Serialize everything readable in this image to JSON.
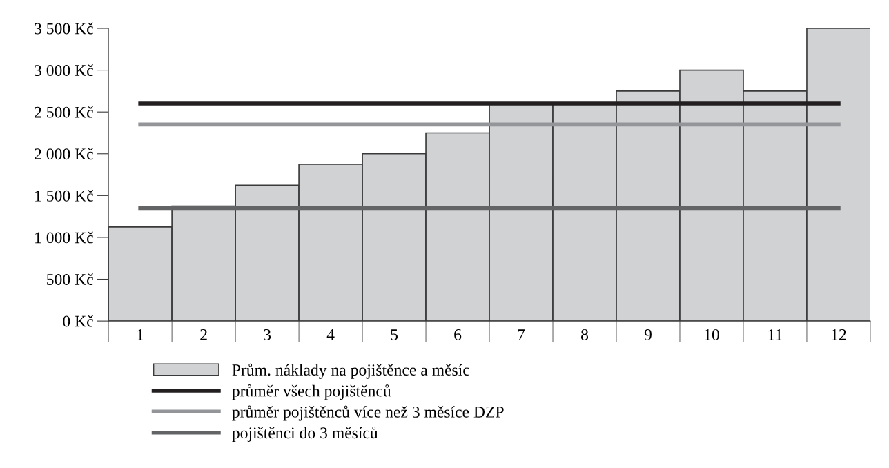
{
  "chart_data": {
    "type": "bar",
    "categories": [
      "1",
      "2",
      "3",
      "4",
      "5",
      "6",
      "7",
      "8",
      "9",
      "10",
      "11",
      "12"
    ],
    "series": [
      {
        "name": "Prům. náklady na pojištěnce a měsíc",
        "color": "#d1d2d4",
        "values": [
          1125,
          1375,
          1625,
          1875,
          2000,
          2250,
          2600,
          2600,
          2750,
          3000,
          2750,
          3500
        ]
      },
      {
        "name": "průměr všech pojištěnců",
        "type": "line",
        "color": "#231f20",
        "values": [
          2600,
          2600,
          2600,
          2600,
          2600,
          2600,
          2600,
          2600,
          2600,
          2600,
          2600,
          2600
        ]
      },
      {
        "name": "průměr pojištěnců více než 3 měsíce DZP",
        "type": "line",
        "color": "#939598",
        "values": [
          2350,
          2350,
          2350,
          2350,
          2350,
          2350,
          2350,
          2350,
          2350,
          2350,
          2350,
          2350
        ]
      },
      {
        "name": "pojištěnci do 3 měsíců",
        "type": "line",
        "color": "#636466",
        "values": [
          1350,
          1350,
          1350,
          1350,
          1350,
          1350,
          1350,
          1350,
          1350,
          1350,
          1350,
          1350
        ]
      }
    ],
    "ylim": [
      0,
      3500
    ],
    "yticks": [
      {
        "value": 0,
        "label": "0 Kč"
      },
      {
        "value": 500,
        "label": "500 Kč"
      },
      {
        "value": 1000,
        "label": "1 000 Kč"
      },
      {
        "value": 1500,
        "label": "1 500 Kč"
      },
      {
        "value": 2000,
        "label": "2 000 Kč"
      },
      {
        "value": 2500,
        "label": "2 500 Kč"
      },
      {
        "value": 3000,
        "label": "3 000 Kč"
      },
      {
        "value": 3500,
        "label": "3 500 Kč"
      }
    ],
    "grid": false,
    "legend": "bottom",
    "marker": "none"
  }
}
